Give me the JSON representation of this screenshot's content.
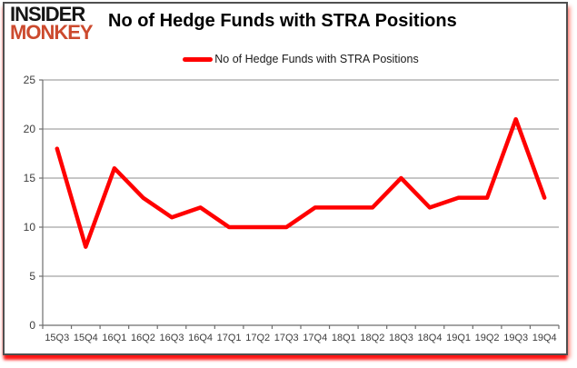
{
  "logo": {
    "line1": "INSIDER",
    "line2": "MONKEY"
  },
  "header": {
    "title": "No of Hedge Funds with STRA Positions"
  },
  "legend": {
    "label": "No of Hedge Funds with STRA Positions"
  },
  "colors": {
    "line": "#ff0000",
    "logo_black": "#151515",
    "logo_red": "#cc4a2e",
    "grid": "#8c8c8c",
    "axis": "#6e6e6e",
    "tick_text": "#3d3d3d"
  },
  "chart_data": {
    "type": "line",
    "title": "No of Hedge Funds with STRA Positions",
    "categories": [
      "15Q3",
      "15Q4",
      "16Q1",
      "16Q2",
      "16Q3",
      "16Q4",
      "17Q1",
      "17Q2",
      "17Q3",
      "17Q4",
      "18Q1",
      "18Q2",
      "18Q3",
      "18Q4",
      "19Q1",
      "19Q2",
      "19Q3",
      "19Q4"
    ],
    "series": [
      {
        "name": "No of Hedge Funds with STRA Positions",
        "color": "#ff0000",
        "values": [
          18,
          8,
          16,
          13,
          11,
          12,
          10,
          10,
          10,
          12,
          12,
          12,
          15,
          12,
          13,
          13,
          21,
          13
        ]
      }
    ],
    "xlabel": "",
    "ylabel": "",
    "ylim": [
      0,
      25
    ],
    "yticks": [
      0,
      5,
      10,
      15,
      20,
      25
    ],
    "grid": true,
    "legend_position": "top-center"
  }
}
